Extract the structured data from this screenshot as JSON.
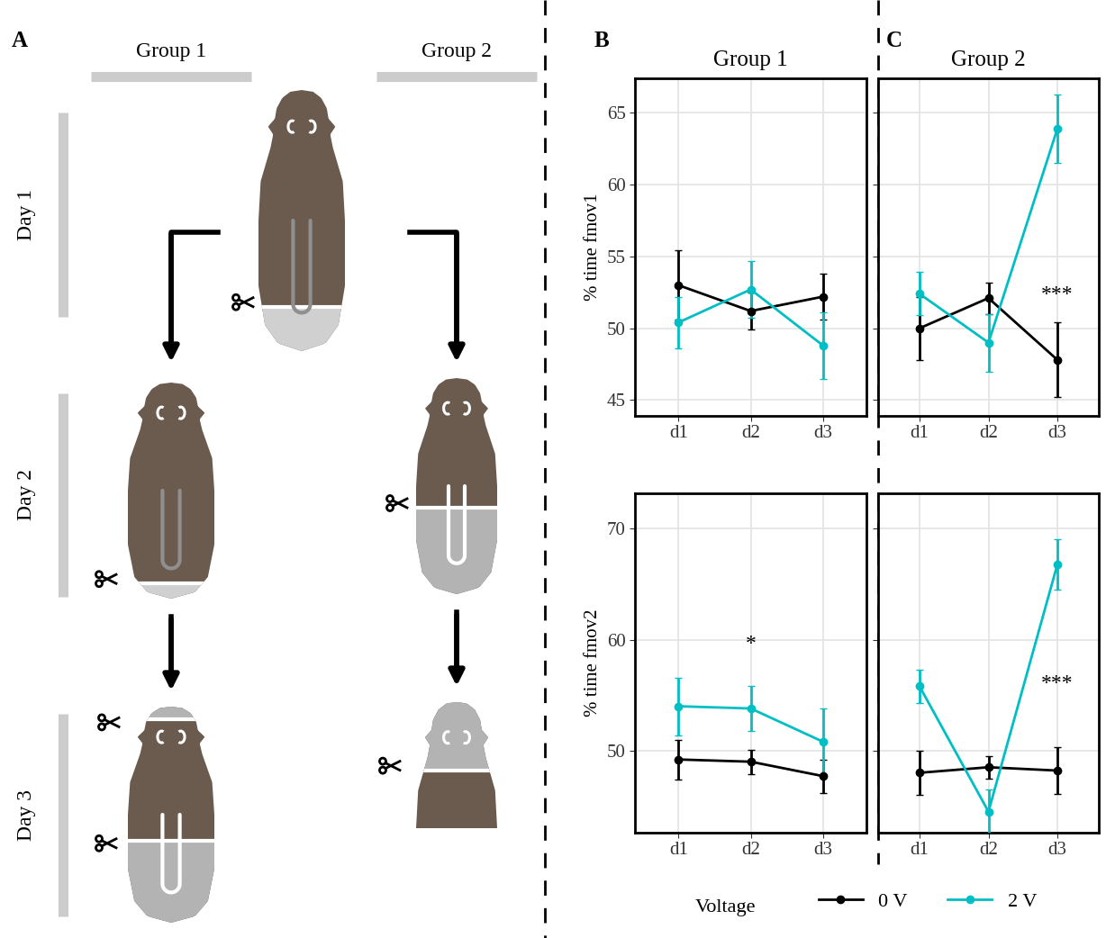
{
  "panel_labels": [
    "A",
    "B",
    "C"
  ],
  "diagram": {
    "columns": [
      "Group 1",
      "Group 2"
    ],
    "rows": [
      "Day 1",
      "Day 2",
      "Day 3"
    ]
  },
  "legend_title": "Voltage",
  "chart_data": [
    {
      "type": "line",
      "title": "Group 1",
      "ylabel": "% time fmov1",
      "categories": [
        "d1",
        "d2",
        "d3"
      ],
      "ylim": [
        43.9,
        67.4
      ],
      "yticks": [
        45,
        50,
        55,
        60,
        65
      ],
      "grid": true,
      "legend": "bottom",
      "series": [
        {
          "name": "0 V",
          "color": "#000000",
          "marker": "circle",
          "values": [
            53.0,
            51.2,
            52.2
          ],
          "errors": [
            2.4,
            1.3,
            1.6
          ]
        },
        {
          "name": "2 V",
          "color": "#00bfc4",
          "marker": "circle",
          "values": [
            50.4,
            52.7,
            48.8
          ],
          "errors": [
            1.8,
            2.0,
            2.3
          ]
        }
      ],
      "annotations": []
    },
    {
      "type": "line",
      "title": "Group 2",
      "categories": [
        "d1",
        "d2",
        "d3"
      ],
      "ylim": [
        43.9,
        67.4
      ],
      "yticks": [
        45,
        50,
        55,
        60,
        65
      ],
      "grid": true,
      "tick_labels": "x",
      "series": [
        {
          "name": "0 V",
          "color": "#000000",
          "marker": "circle",
          "values": [
            50.0,
            52.1,
            47.8
          ],
          "errors": [
            2.2,
            1.1,
            2.6
          ]
        },
        {
          "name": "2 V",
          "color": "#00bfc4",
          "marker": "circle",
          "values": [
            52.4,
            49.0,
            63.9
          ],
          "errors": [
            1.5,
            2.0,
            2.4
          ]
        }
      ],
      "annotations": [
        {
          "text": "***",
          "category": "d3",
          "y": 52.3
        }
      ]
    },
    {
      "type": "line",
      "ylabel": "% time fmov2",
      "categories": [
        "d1",
        "d2",
        "d3"
      ],
      "ylim": [
        42.6,
        73.2
      ],
      "yticks": [
        50,
        60,
        70
      ],
      "grid": true,
      "series": [
        {
          "name": "0 V",
          "color": "#000000",
          "marker": "circle",
          "values": [
            49.2,
            49.0,
            47.7
          ],
          "errors": [
            1.8,
            1.1,
            1.5
          ]
        },
        {
          "name": "2 V",
          "color": "#00bfc4",
          "marker": "circle",
          "values": [
            54.0,
            53.8,
            50.8
          ],
          "errors": [
            2.6,
            2.0,
            3.0
          ]
        }
      ],
      "annotations": [
        {
          "text": "*",
          "category": "d2",
          "y": 59.6
        }
      ]
    },
    {
      "type": "line",
      "categories": [
        "d1",
        "d2",
        "d3"
      ],
      "ylim": [
        42.6,
        73.2
      ],
      "yticks": [
        50,
        60,
        70
      ],
      "grid": true,
      "tick_labels": "x",
      "series": [
        {
          "name": "0 V",
          "color": "#000000",
          "marker": "circle",
          "values": [
            48.0,
            48.5,
            48.2
          ],
          "errors": [
            2.0,
            1.0,
            2.1
          ]
        },
        {
          "name": "2 V",
          "color": "#00bfc4",
          "marker": "circle",
          "values": [
            55.8,
            44.5,
            66.8
          ],
          "errors": [
            1.5,
            2.0,
            2.3
          ]
        }
      ],
      "annotations": [
        {
          "text": "***",
          "category": "d3",
          "y": 56.0
        }
      ]
    }
  ]
}
